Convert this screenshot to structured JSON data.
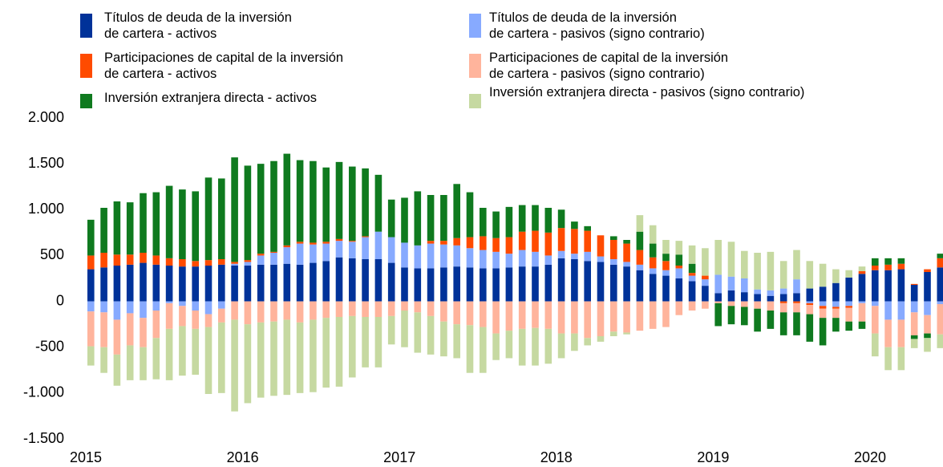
{
  "chart_data": {
    "type": "bar",
    "stacked": true,
    "categories": [
      "2015",
      null,
      null,
      null,
      null,
      null,
      null,
      null,
      null,
      null,
      null,
      null,
      "2016",
      null,
      null,
      null,
      null,
      null,
      null,
      null,
      null,
      null,
      null,
      null,
      "2017",
      null,
      null,
      null,
      null,
      null,
      null,
      null,
      null,
      null,
      null,
      null,
      "2018",
      null,
      null,
      null,
      null,
      null,
      null,
      null,
      null,
      null,
      null,
      null,
      "2019",
      null,
      null,
      null,
      null,
      null,
      null,
      null,
      null,
      null,
      null,
      null,
      "2020",
      null,
      null,
      null,
      null,
      null
    ],
    "ylim": [
      -1500,
      2000
    ],
    "yticks": [
      {
        "value": -1500,
        "label": "-1.500"
      },
      {
        "value": -1000,
        "label": "-1.000"
      },
      -500,
      0,
      500,
      {
        "value": 1000,
        "label": "1.000"
      },
      {
        "value": 1500,
        "label": "1.500"
      },
      {
        "value": 2000,
        "label": "2.000"
      }
    ],
    "series": [
      {
        "name": "Títulos de deuda de la inversión\nde cartera - activos",
        "color": "#003299",
        "values": [
          350,
          370,
          390,
          400,
          420,
          400,
          390,
          380,
          380,
          390,
          400,
          390,
          390,
          400,
          400,
          410,
          400,
          420,
          440,
          480,
          470,
          460,
          460,
          420,
          370,
          360,
          360,
          370,
          380,
          370,
          360,
          360,
          370,
          380,
          380,
          400,
          470,
          460,
          440,
          430,
          400,
          380,
          340,
          300,
          280,
          250,
          220,
          170,
          90,
          120,
          100,
          80,
          60,
          80,
          90,
          140,
          160,
          200,
          260,
          300,
          340,
          340,
          350,
          180,
          320,
          370
        ]
      },
      {
        "name": "Títulos de deuda de la inversión\nde cartera - pasivos (signo contrario)",
        "color": "#87aaff",
        "values": [
          -110,
          -120,
          -200,
          -130,
          -180,
          -100,
          -20,
          -50,
          -100,
          -140,
          -80,
          20,
          40,
          100,
          130,
          180,
          230,
          200,
          190,
          180,
          180,
          240,
          300,
          280,
          270,
          250,
          270,
          250,
          230,
          210,
          200,
          180,
          150,
          180,
          160,
          100,
          80,
          60,
          100,
          60,
          60,
          50,
          60,
          60,
          60,
          110,
          60,
          70,
          200,
          150,
          150,
          50,
          60,
          60,
          150,
          -20,
          -50,
          -60,
          -50,
          -20,
          -50,
          -200,
          -200,
          -120,
          -150,
          -30
        ]
      },
      {
        "name": "Participaciones de capital de la inversión\nde cartera - activos",
        "color": "#ff4b00",
        "values": [
          150,
          160,
          120,
          110,
          110,
          100,
          80,
          80,
          60,
          60,
          60,
          20,
          20,
          20,
          10,
          20,
          20,
          20,
          20,
          20,
          10,
          10,
          0,
          0,
          0,
          0,
          30,
          40,
          80,
          120,
          150,
          150,
          180,
          200,
          230,
          250,
          250,
          270,
          230,
          230,
          210,
          200,
          160,
          120,
          100,
          30,
          30,
          40,
          0,
          0,
          0,
          0,
          0,
          -20,
          -20,
          -20,
          -30,
          -20,
          -20,
          30,
          50,
          60,
          60,
          10,
          30,
          100
        ]
      },
      {
        "name": "Participaciones de capital de la inversión\nde cartera - pasivos (signo contrario)",
        "color": "#ffb49c",
        "values": [
          -380,
          -380,
          -380,
          -350,
          -320,
          -300,
          -280,
          -220,
          -200,
          -140,
          -150,
          -200,
          -250,
          -230,
          -220,
          -200,
          -230,
          -200,
          -180,
          -170,
          -160,
          -170,
          -170,
          -160,
          -100,
          -120,
          -160,
          -220,
          -250,
          -260,
          -280,
          -350,
          -320,
          -300,
          -290,
          -300,
          -350,
          -350,
          -400,
          -380,
          -330,
          -340,
          -320,
          -300,
          -280,
          -150,
          -100,
          -80,
          -20,
          -50,
          -60,
          -80,
          -100,
          -100,
          -100,
          -100,
          -100,
          -100,
          -150,
          -200,
          -300,
          -300,
          -300,
          -250,
          -200,
          -330
        ]
      },
      {
        "name": "Inversión extranjera directa - activos",
        "color": "#0f7a1f",
        "values": [
          390,
          490,
          580,
          570,
          650,
          690,
          790,
          760,
          760,
          900,
          880,
          1140,
          1030,
          980,
          990,
          1000,
          890,
          890,
          810,
          840,
          810,
          740,
          620,
          410,
          490,
          590,
          500,
          500,
          590,
          490,
          310,
          290,
          330,
          290,
          280,
          270,
          200,
          80,
          50,
          0,
          40,
          40,
          200,
          150,
          80,
          120,
          100,
          0,
          -250,
          -200,
          -200,
          -250,
          -200,
          -250,
          -250,
          -300,
          -300,
          -150,
          -100,
          -80,
          80,
          70,
          60,
          -40,
          -50,
          50
        ]
      },
      {
        "name": "Inversión extranjera directa - pasivos (signo contrario)",
        "color": "#c6d9a1",
        "values": [
          -210,
          -280,
          -340,
          -380,
          -360,
          -450,
          -560,
          -540,
          -500,
          -730,
          -770,
          -1000,
          -860,
          -820,
          -810,
          -820,
          -770,
          -790,
          -760,
          -760,
          -670,
          -550,
          -550,
          -310,
          -400,
          -440,
          -420,
          -380,
          -370,
          -520,
          -500,
          -290,
          -300,
          -400,
          -410,
          -380,
          -270,
          -190,
          -80,
          -60,
          -50,
          -20,
          180,
          200,
          150,
          150,
          200,
          300,
          380,
          380,
          300,
          400,
          420,
          300,
          320,
          300,
          250,
          150,
          80,
          50,
          -250,
          -250,
          -250,
          -100,
          -150,
          -150
        ]
      }
    ]
  }
}
